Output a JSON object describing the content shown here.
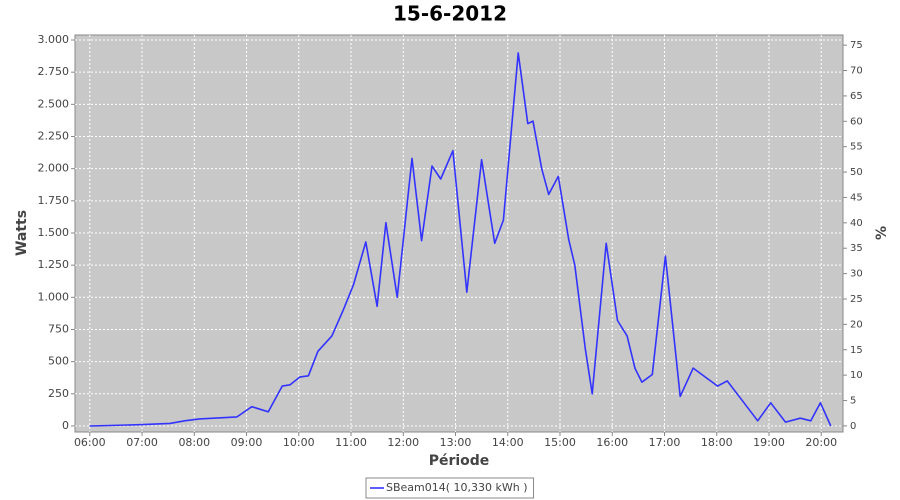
{
  "chart_data": {
    "type": "line",
    "title": "15-6-2012",
    "x_label": "Période",
    "y_label": "Watts",
    "y2_label": "%",
    "x": [
      "06:00",
      "06:57",
      "07:32",
      "07:49",
      "08:06",
      "08:49",
      "09:06",
      "09:25",
      "09:41",
      "09:50",
      "10:01",
      "10:11",
      "10:22",
      "10:38",
      "10:51",
      "11:03",
      "11:17",
      "11:30",
      "11:40",
      "11:53",
      "12:10",
      "12:21",
      "12:33",
      "12:43",
      "12:57",
      "13:13",
      "13:30",
      "13:45",
      "13:55",
      "14:12",
      "14:23",
      "14:29",
      "14:39",
      "14:47",
      "14:58",
      "15:10",
      "15:17",
      "15:29",
      "15:37",
      "15:53",
      "16:06",
      "16:17",
      "16:26",
      "16:34",
      "16:46",
      "17:01",
      "17:18",
      "17:33",
      "17:47",
      "18:01",
      "18:12",
      "18:29",
      "18:47",
      "19:02",
      "19:19",
      "19:36",
      "19:48",
      "19:59",
      "20:11"
    ],
    "series": [
      {
        "name": "SBeam014( 10,330 kWh )",
        "color": "#3333ff",
        "values": [
          0,
          10,
          20,
          40,
          55,
          70,
          150,
          110,
          310,
          320,
          380,
          390,
          580,
          700,
          900,
          1100,
          1430,
          930,
          1580,
          1000,
          2080,
          1440,
          2020,
          1920,
          2140,
          1040,
          2070,
          1420,
          1600,
          2900,
          2350,
          2370,
          2000,
          1800,
          1940,
          1450,
          1250,
          600,
          250,
          1420,
          820,
          700,
          450,
          340,
          400,
          1320,
          230,
          450,
          380,
          310,
          350,
          200,
          40,
          180,
          30,
          60,
          40,
          180,
          0
        ]
      }
    ],
    "xlim": [
      "05:43",
      "20:25"
    ],
    "xticks": [
      "06:00",
      "07:00",
      "08:00",
      "09:00",
      "10:00",
      "11:00",
      "12:00",
      "13:00",
      "14:00",
      "15:00",
      "16:00",
      "17:00",
      "18:00",
      "19:00",
      "20:00"
    ],
    "ylim": [
      -47,
      3039
    ],
    "yticks": [
      0,
      250,
      500,
      750,
      {
        "value": 1000,
        "label": "1.000"
      },
      {
        "value": 1250,
        "label": "1.250"
      },
      {
        "value": 1500,
        "label": "1.500"
      },
      {
        "value": 1750,
        "label": "1.750"
      },
      {
        "value": 2000,
        "label": "2.000"
      },
      {
        "value": 2250,
        "label": "2.250"
      },
      {
        "value": 2500,
        "label": "2.500"
      },
      {
        "value": 2750,
        "label": "2.750"
      },
      {
        "value": 3000,
        "label": "3.000"
      }
    ],
    "y2lim": [
      -1.2,
      77
    ],
    "y2ticks": [
      0,
      5,
      10,
      15,
      20,
      25,
      30,
      35,
      40,
      45,
      50,
      55,
      60,
      65,
      70,
      75
    ],
    "grid": true,
    "background": "#c8c8c8",
    "legend": "bottom"
  }
}
